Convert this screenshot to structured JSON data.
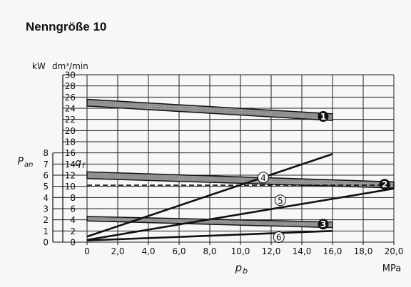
{
  "title": "Nenngröße 10",
  "chart_data": {
    "type": "line",
    "title": "Nenngröße 10",
    "xlabel": "p",
    "xlabel_sub": "b",
    "xunit": "MPa",
    "xlim": [
      0,
      20
    ],
    "x_ticks": [
      "0",
      "2,0",
      "4,0",
      "6,0",
      "8,0",
      "10,0",
      "12,0",
      "14,0",
      "16,0",
      "18,0",
      "20,0"
    ],
    "y_power": {
      "label": "P",
      "label_sub": "an",
      "unit": "kW",
      "range": [
        0,
        8
      ],
      "ticks": [
        "0",
        "1",
        "2",
        "3",
        "4",
        "5",
        "6",
        "7",
        "8"
      ]
    },
    "y_flow": {
      "label": "q",
      "label_sub": "f",
      "unit": "dm³/min",
      "range": [
        0,
        30
      ],
      "ticks": [
        "0",
        "2",
        "4",
        "6",
        "8",
        "10",
        "12",
        "14",
        "16",
        "18",
        "20",
        "22",
        "24",
        "26",
        "28",
        "30"
      ]
    },
    "bands": [
      {
        "name": "1",
        "axis": "flow",
        "x": [
          0,
          16
        ],
        "upper": [
          25.6,
          23.0
        ],
        "lower": [
          24.4,
          21.8
        ]
      },
      {
        "name": "2",
        "axis": "flow",
        "x": [
          0,
          20
        ],
        "upper": [
          12.6,
          10.8
        ],
        "lower": [
          11.4,
          9.7
        ]
      },
      {
        "name": "3",
        "axis": "flow",
        "x": [
          0,
          16
        ],
        "upper": [
          4.6,
          3.6
        ],
        "lower": [
          3.8,
          2.6
        ]
      }
    ],
    "lines": [
      {
        "name": "4",
        "axis": "flow",
        "x": [
          0,
          16
        ],
        "y": [
          1.0,
          15.8
        ]
      },
      {
        "name": "5",
        "axis": "flow",
        "x": [
          0,
          20
        ],
        "y": [
          0.4,
          9.6
        ]
      },
      {
        "name": "6",
        "axis": "flow",
        "x": [
          0,
          16
        ],
        "y": [
          0.3,
          2.0
        ]
      }
    ],
    "reference_line": {
      "style": "dashed",
      "axis": "flow",
      "y": 10.2,
      "x": [
        0,
        20
      ]
    },
    "grid": true
  }
}
